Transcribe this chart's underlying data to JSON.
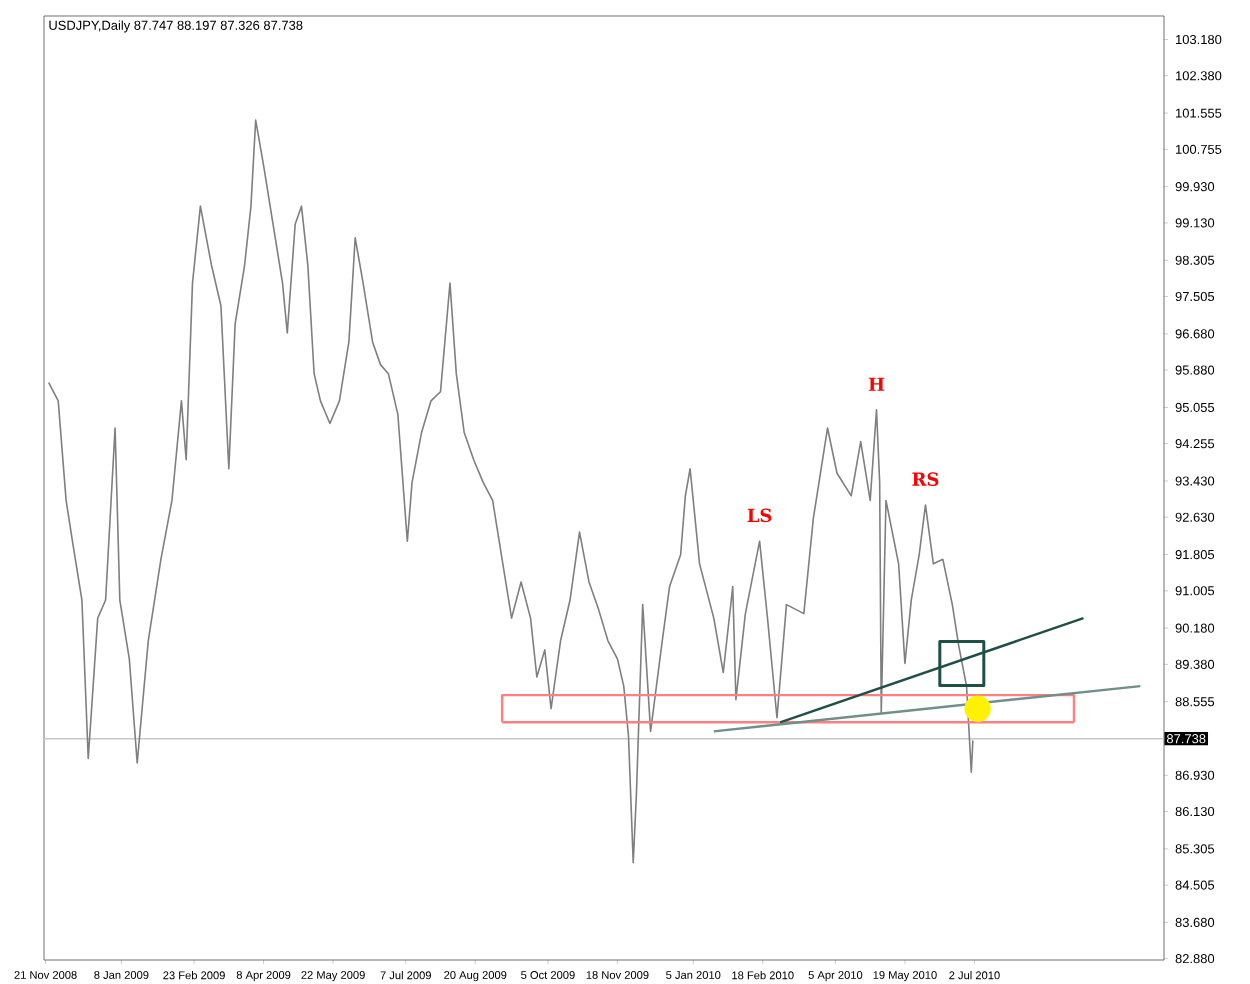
{
  "chart_data": {
    "type": "line",
    "title": "USDJPY,Daily  87.747 88.197 87.326 87.738",
    "xlim": [
      "2008-11-20",
      "2010-10-30"
    ],
    "ylim": [
      82.85,
      103.7
    ],
    "xticks": [
      {
        "value": "2008-11-21",
        "label": "21 Nov 2008"
      },
      {
        "value": "2009-01-08",
        "label": "8 Jan 2009"
      },
      {
        "value": "2009-02-23",
        "label": "23 Feb 2009"
      },
      {
        "value": "2009-04-08",
        "label": "8 Apr 2009"
      },
      {
        "value": "2009-05-22",
        "label": "22 May 2009"
      },
      {
        "value": "2009-07-07",
        "label": "7 Jul 2009"
      },
      {
        "value": "2009-08-20",
        "label": "20 Aug 2009"
      },
      {
        "value": "2009-10-05",
        "label": "5 Oct 2009"
      },
      {
        "value": "2009-11-18",
        "label": "18 Nov 2009"
      },
      {
        "value": "2010-01-05",
        "label": "5 Jan 2010"
      },
      {
        "value": "2010-02-18",
        "label": "18 Feb 2010"
      },
      {
        "value": "2010-04-05",
        "label": "5 Apr 2010"
      },
      {
        "value": "2010-05-19",
        "label": "19 May 2010"
      },
      {
        "value": "2010-07-02",
        "label": "2 Jul 2010"
      }
    ],
    "yticks": [
      {
        "value": 103.18,
        "label": "103.180"
      },
      {
        "value": 102.38,
        "label": "102.380"
      },
      {
        "value": 101.555,
        "label": "101.555"
      },
      {
        "value": 100.755,
        "label": "100.755"
      },
      {
        "value": 99.93,
        "label": "99.930"
      },
      {
        "value": 99.13,
        "label": "99.130"
      },
      {
        "value": 98.305,
        "label": "98.305"
      },
      {
        "value": 97.505,
        "label": "97.505"
      },
      {
        "value": 96.68,
        "label": "96.680"
      },
      {
        "value": 95.88,
        "label": "95.880"
      },
      {
        "value": 95.055,
        "label": "95.055"
      },
      {
        "value": 94.255,
        "label": "94.255"
      },
      {
        "value": 93.43,
        "label": "93.430"
      },
      {
        "value": 92.63,
        "label": "92.630"
      },
      {
        "value": 91.805,
        "label": "91.805"
      },
      {
        "value": 91.005,
        "label": "91.005"
      },
      {
        "value": 90.18,
        "label": "90.180"
      },
      {
        "value": 89.38,
        "label": "89.380"
      },
      {
        "value": 88.555,
        "label": "88.555"
      },
      {
        "value": 86.93,
        "label": "86.930"
      },
      {
        "value": 86.13,
        "label": "86.130"
      },
      {
        "value": 85.305,
        "label": "85.305"
      },
      {
        "value": 84.505,
        "label": "84.505"
      },
      {
        "value": 83.68,
        "label": "83.680"
      },
      {
        "value": 82.88,
        "label": "82.880"
      }
    ],
    "series": [
      {
        "color": "#7f7f7f",
        "x": [
          "2008-11-23",
          "2008-11-29",
          "2008-12-04",
          "2008-12-08",
          "2008-12-14",
          "2008-12-18",
          "2008-12-24",
          "2008-12-29",
          "2009-01-04",
          "2009-01-07",
          "2009-01-13",
          "2009-01-18",
          "2009-01-25",
          "2009-02-02",
          "2009-02-09",
          "2009-02-15",
          "2009-02-18",
          "2009-02-22",
          "2009-02-27",
          "2009-03-06",
          "2009-03-12",
          "2009-03-17",
          "2009-03-21",
          "2009-03-27",
          "2009-03-31",
          "2009-04-03",
          "2009-04-08",
          "2009-04-14",
          "2009-04-20",
          "2009-04-23",
          "2009-04-28",
          "2009-05-02",
          "2009-05-06",
          "2009-05-10",
          "2009-05-14",
          "2009-05-20",
          "2009-05-26",
          "2009-06-01",
          "2009-06-05",
          "2009-06-10",
          "2009-06-16",
          "2009-06-21",
          "2009-06-26",
          "2009-07-02",
          "2009-07-08",
          "2009-07-11",
          "2009-07-17",
          "2009-07-23",
          "2009-07-29",
          "2009-08-04",
          "2009-08-08",
          "2009-08-13",
          "2009-08-19",
          "2009-08-25",
          "2009-08-31",
          "2009-09-06",
          "2009-09-12",
          "2009-09-18",
          "2009-09-24",
          "2009-09-28",
          "2009-10-03",
          "2009-10-07",
          "2009-10-13",
          "2009-10-19",
          "2009-10-25",
          "2009-10-31",
          "2009-11-06",
          "2009-11-12",
          "2009-11-18",
          "2009-11-22",
          "2009-11-25",
          "2009-11-28",
          "2009-11-30",
          "2009-12-04",
          "2009-12-09",
          "2009-12-16",
          "2009-12-21",
          "2009-12-28",
          "2009-12-31",
          "2010-01-03",
          "2010-01-09",
          "2010-01-18",
          "2010-01-24",
          "2010-01-30",
          "2010-02-01",
          "2010-02-07",
          "2010-02-16",
          "2010-02-21",
          "2010-02-27",
          "2010-03-05",
          "2010-03-16",
          "2010-03-22",
          "2010-03-31",
          "2010-04-06",
          "2010-04-15",
          "2010-04-21",
          "2010-04-27",
          "2010-05-01",
          "2010-05-03",
          "2010-05-04",
          "2010-05-07",
          "2010-05-15",
          "2010-05-19",
          "2010-05-23",
          "2010-05-28",
          "2010-06-01",
          "2010-06-06",
          "2010-06-12",
          "2010-06-18",
          "2010-06-22",
          "2010-06-27",
          "2010-06-30",
          "2010-07-01"
        ],
        "values": [
          95.6,
          95.2,
          93.0,
          92.1,
          90.8,
          87.3,
          90.4,
          90.8,
          94.6,
          90.8,
          89.5,
          87.2,
          89.9,
          91.7,
          93.0,
          95.2,
          93.9,
          97.8,
          99.5,
          98.2,
          97.3,
          93.7,
          96.9,
          98.2,
          99.5,
          101.4,
          100.4,
          99.1,
          97.8,
          96.7,
          99.1,
          99.5,
          98.2,
          95.8,
          95.2,
          94.7,
          95.2,
          96.5,
          98.8,
          97.8,
          96.5,
          96.0,
          95.8,
          94.9,
          92.1,
          93.4,
          94.5,
          95.2,
          95.4,
          97.8,
          95.8,
          94.5,
          93.9,
          93.4,
          93.0,
          91.7,
          90.4,
          91.2,
          90.4,
          89.1,
          89.7,
          88.4,
          89.9,
          90.8,
          92.3,
          91.2,
          90.6,
          89.9,
          89.5,
          88.9,
          87.8,
          85.0,
          86.5,
          90.7,
          87.9,
          89.8,
          91.1,
          91.8,
          93.1,
          93.7,
          91.6,
          90.4,
          89.2,
          91.1,
          88.6,
          90.5,
          92.1,
          90.4,
          88.2,
          90.7,
          90.5,
          92.6,
          94.6,
          93.6,
          93.1,
          94.3,
          93.0,
          95.0,
          93.4,
          88.3,
          93.0,
          91.6,
          89.4,
          90.8,
          91.8,
          92.9,
          91.6,
          91.7,
          90.7,
          89.8,
          88.9,
          87.0,
          87.7
        ]
      },
      {
        "color": "#ff8080",
        "x": [
          "2009-09-06",
          "2009-09-06",
          "2010-09-03",
          "2010-09-03"
        ],
        "values": [
          88.1,
          88.7,
          88.7,
          88.1
        ]
      },
      {
        "color": "#ff8080",
        "x": [
          "2009-09-06",
          "2010-09-03"
        ],
        "values": [
          88.1,
          88.1
        ]
      },
      {
        "color": "#1f4f45",
        "x": [
          "2010-03-01",
          "2010-09-09"
        ],
        "values": [
          88.1,
          90.4
        ]
      },
      {
        "color": "#6f8f88",
        "x": [
          "2010-01-18",
          "2010-10-15"
        ],
        "values": [
          87.9,
          88.9
        ]
      },
      {
        "type": "scatter",
        "marker": "square",
        "color": "#1f4f45",
        "x": [
          "2010-06-24"
        ],
        "values": [
          89.4
        ]
      },
      {
        "type": "scatter",
        "marker": "circle",
        "color": "#fff200",
        "x": [
          "2010-07-04"
        ],
        "values": [
          88.4
        ]
      }
    ],
    "ref_lines": [
      {
        "axis": "y",
        "value": 87.738,
        "label": "87.738",
        "color": "#c8c8c8"
      }
    ],
    "annotations": [
      {
        "text": "LS",
        "x": "2010-02-16",
        "y": 92.1
      },
      {
        "text": "H",
        "x": "2010-05-01",
        "y": 95.0
      },
      {
        "text": "RS",
        "x": "2010-06-01",
        "y": 92.9
      }
    ]
  }
}
